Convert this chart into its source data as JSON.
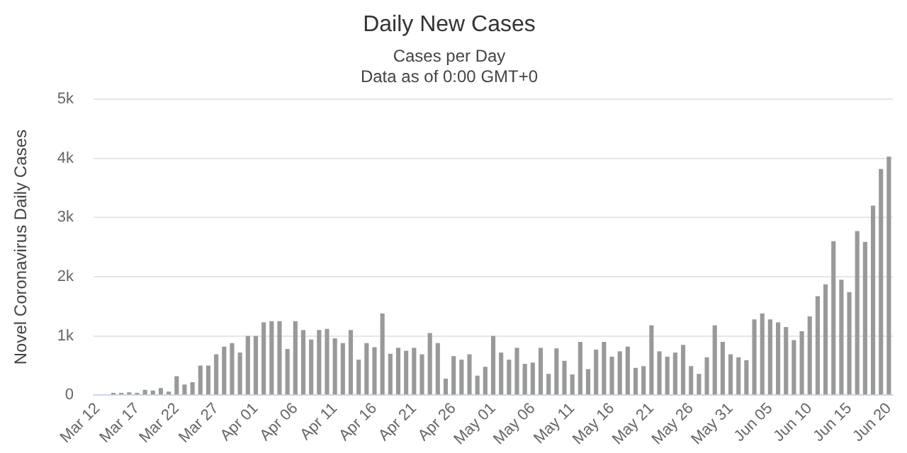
{
  "chart_data": {
    "type": "bar",
    "title": "Daily New Cases",
    "subtitle": "Cases per Day\nData as of 0:00 GMT+0",
    "ylabel": "Novel Coronavirus Daily Cases",
    "categories": [
      "Mar 12",
      null,
      null,
      null,
      null,
      "Mar 17",
      null,
      null,
      null,
      null,
      "Mar 22",
      null,
      null,
      null,
      null,
      "Mar 27",
      null,
      null,
      null,
      null,
      "Apr 01",
      null,
      null,
      null,
      null,
      "Apr 06",
      null,
      null,
      null,
      null,
      "Apr 11",
      null,
      null,
      null,
      null,
      "Apr 16",
      null,
      null,
      null,
      null,
      "Apr 21",
      null,
      null,
      null,
      null,
      "Apr 26",
      null,
      null,
      null,
      null,
      "May 01",
      null,
      null,
      null,
      null,
      "May 06",
      null,
      null,
      null,
      null,
      "May 11",
      null,
      null,
      null,
      null,
      "May 16",
      null,
      null,
      null,
      null,
      "May 21",
      null,
      null,
      null,
      null,
      "May 26",
      null,
      null,
      null,
      null,
      "May 31",
      null,
      null,
      null,
      null,
      "Jun 05",
      null,
      null,
      null,
      null,
      "Jun 10",
      null,
      null,
      null,
      null,
      "Jun 15",
      null,
      null,
      null,
      null,
      "Jun 20"
    ],
    "values": [
      0,
      0,
      40,
      40,
      50,
      40,
      90,
      80,
      120,
      60,
      320,
      180,
      220,
      500,
      500,
      690,
      820,
      880,
      720,
      1000,
      1000,
      1230,
      1250,
      1250,
      780,
      1250,
      1100,
      940,
      1100,
      1120,
      960,
      880,
      1100,
      600,
      880,
      810,
      1380,
      700,
      800,
      750,
      800,
      690,
      1050,
      880,
      280,
      660,
      600,
      690,
      330,
      480,
      1000,
      720,
      600,
      800,
      530,
      550,
      800,
      360,
      790,
      580,
      350,
      900,
      440,
      770,
      900,
      650,
      740,
      820,
      460,
      490,
      1180,
      740,
      650,
      720,
      850,
      490,
      360,
      640,
      1180,
      900,
      690,
      640,
      590,
      1280,
      1380,
      1280,
      1230,
      1150,
      930,
      1080,
      1330,
      1670,
      1870,
      2600,
      1950,
      1740,
      2770,
      2590,
      3200,
      3820,
      4030
    ],
    "color": "#999999",
    "ylim": [
      0,
      5000
    ],
    "yticks": [
      0,
      {
        "value": 1000,
        "label": "1k"
      },
      {
        "value": 2000,
        "label": "2k"
      },
      {
        "value": 3000,
        "label": "3k"
      },
      {
        "value": 4000,
        "label": "4k"
      },
      {
        "value": 5000,
        "label": "5k"
      }
    ],
    "grid": "y"
  }
}
